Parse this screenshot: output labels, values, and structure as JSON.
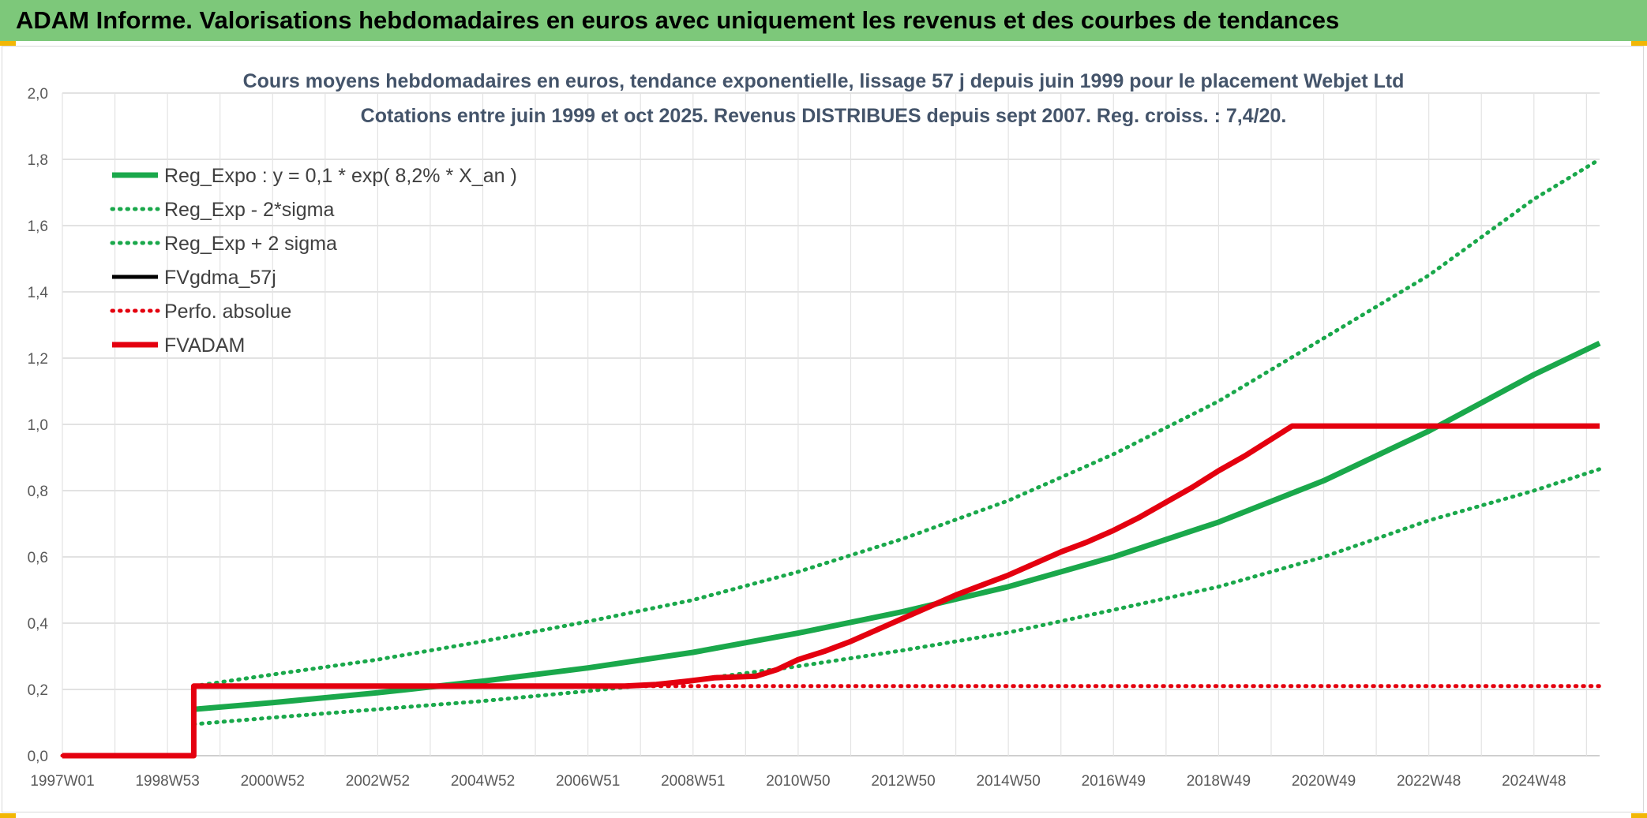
{
  "banner": {
    "title": "ADAM Informe. Valorisations hebdomadaires en euros avec uniquement les revenus et des courbes de tendances"
  },
  "chart_data": {
    "type": "line",
    "title": "Cours moyens hebdomadaires en euros, tendance exponentielle, lissage 57 j depuis juin 1999 pour le placement Webjet Ltd",
    "subtitle": "Cotations entre juin 1999 et oct 2025. Revenus DISTRIBUES depuis sept 2007. Reg. croiss. : 7,4/20.",
    "xlabel": "",
    "ylabel": "",
    "xlim": [
      1997.0,
      2026.25
    ],
    "ylim": [
      0,
      2.0
    ],
    "y_ticks": [
      "0,0",
      "0,2",
      "0,4",
      "0,6",
      "0,8",
      "1,0",
      "1,2",
      "1,4",
      "1,6",
      "1,8",
      "2,0"
    ],
    "x_ticks": [
      {
        "label": "1997W01",
        "x": 1997.0
      },
      {
        "label": "1998W53",
        "x": 1999.0
      },
      {
        "label": "2000W52",
        "x": 2001.0
      },
      {
        "label": "2002W52",
        "x": 2003.0
      },
      {
        "label": "2004W52",
        "x": 2005.0
      },
      {
        "label": "2006W51",
        "x": 2007.0
      },
      {
        "label": "2008W51",
        "x": 2009.0
      },
      {
        "label": "2010W50",
        "x": 2011.0
      },
      {
        "label": "2012W50",
        "x": 2013.0
      },
      {
        "label": "2014W50",
        "x": 2015.0
      },
      {
        "label": "2016W49",
        "x": 2017.0
      },
      {
        "label": "2018W49",
        "x": 2019.0
      },
      {
        "label": "2020W49",
        "x": 2021.0
      },
      {
        "label": "2022W48",
        "x": 2023.0
      },
      {
        "label": "2024W48",
        "x": 2025.0
      }
    ],
    "grid": true,
    "legend_position": "top-left",
    "series": [
      {
        "name": "Reg_Expo : y = 0,1 * exp( 8,2% *  X_an )",
        "color": "#1aa84b",
        "style": "solid",
        "x": [
          1999.5,
          2001.0,
          2003.0,
          2005.0,
          2007.0,
          2009.0,
          2011.0,
          2013.0,
          2015.0,
          2017.0,
          2019.0,
          2021.0,
          2023.0,
          2025.0,
          2026.25
        ],
        "y": [
          0.14,
          0.16,
          0.19,
          0.225,
          0.265,
          0.312,
          0.37,
          0.435,
          0.51,
          0.6,
          0.705,
          0.83,
          0.98,
          1.15,
          1.245
        ]
      },
      {
        "name": "Reg_Exp - 2*sigma",
        "color": "#1aa84b",
        "style": "dotted",
        "x": [
          1999.5,
          2001.0,
          2003.0,
          2005.0,
          2007.0,
          2009.0,
          2011.0,
          2013.0,
          2015.0,
          2017.0,
          2019.0,
          2021.0,
          2023.0,
          2025.0,
          2026.25
        ],
        "y": [
          0.095,
          0.115,
          0.14,
          0.165,
          0.195,
          0.228,
          0.27,
          0.318,
          0.372,
          0.44,
          0.51,
          0.6,
          0.71,
          0.8,
          0.865
        ]
      },
      {
        "name": "Reg_Exp + 2 sigma",
        "color": "#1aa84b",
        "style": "dotted",
        "x": [
          1999.5,
          2001.0,
          2003.0,
          2005.0,
          2007.0,
          2009.0,
          2011.0,
          2013.0,
          2015.0,
          2017.0,
          2019.0,
          2021.0,
          2023.0,
          2025.0,
          2026.25
        ],
        "y": [
          0.21,
          0.245,
          0.29,
          0.345,
          0.405,
          0.47,
          0.555,
          0.655,
          0.77,
          0.91,
          1.07,
          1.26,
          1.45,
          1.68,
          1.8
        ]
      },
      {
        "name": "FVgdma_57j",
        "color": "#000000",
        "style": "solid",
        "x": [
          1997.0,
          1999.5,
          1999.5,
          2007.7,
          2008.3,
          2008.9,
          2009.4,
          2010.2,
          2010.6,
          2011.0,
          2011.5,
          2012.0,
          2012.5,
          2013.0,
          2013.5,
          2014.0,
          2014.5,
          2015.0,
          2015.5,
          2016.0,
          2016.5,
          2017.0,
          2017.5,
          2018.0,
          2018.5,
          2019.0,
          2019.5,
          2020.0,
          2020.4,
          2021.0,
          2026.25
        ],
        "y": [
          0.0,
          0.0,
          0.21,
          0.21,
          0.215,
          0.225,
          0.235,
          0.24,
          0.26,
          0.29,
          0.315,
          0.345,
          0.38,
          0.415,
          0.45,
          0.485,
          0.515,
          0.545,
          0.58,
          0.615,
          0.645,
          0.68,
          0.72,
          0.765,
          0.81,
          0.86,
          0.905,
          0.955,
          0.995,
          0.995,
          0.995
        ]
      },
      {
        "name": "Perfo. absolue",
        "color": "#e4000f",
        "style": "dotted",
        "x": [
          1997.0,
          1999.5,
          1999.5,
          2026.25
        ],
        "y": [
          0.0,
          0.0,
          0.21,
          0.21
        ]
      },
      {
        "name": "FVADAM",
        "color": "#e4000f",
        "style": "solid",
        "x": [
          1997.0,
          1999.5,
          1999.5,
          2007.7,
          2008.3,
          2008.9,
          2009.4,
          2010.2,
          2010.6,
          2011.0,
          2011.5,
          2012.0,
          2012.5,
          2013.0,
          2013.5,
          2014.0,
          2014.5,
          2015.0,
          2015.5,
          2016.0,
          2016.5,
          2017.0,
          2017.5,
          2018.0,
          2018.5,
          2019.0,
          2019.5,
          2020.0,
          2020.4,
          2021.0,
          2026.25
        ],
        "y": [
          0.0,
          0.0,
          0.21,
          0.21,
          0.215,
          0.225,
          0.235,
          0.24,
          0.26,
          0.29,
          0.315,
          0.345,
          0.38,
          0.415,
          0.45,
          0.485,
          0.515,
          0.545,
          0.58,
          0.615,
          0.645,
          0.68,
          0.72,
          0.765,
          0.81,
          0.86,
          0.905,
          0.955,
          0.995,
          0.995,
          0.995
        ]
      }
    ]
  }
}
